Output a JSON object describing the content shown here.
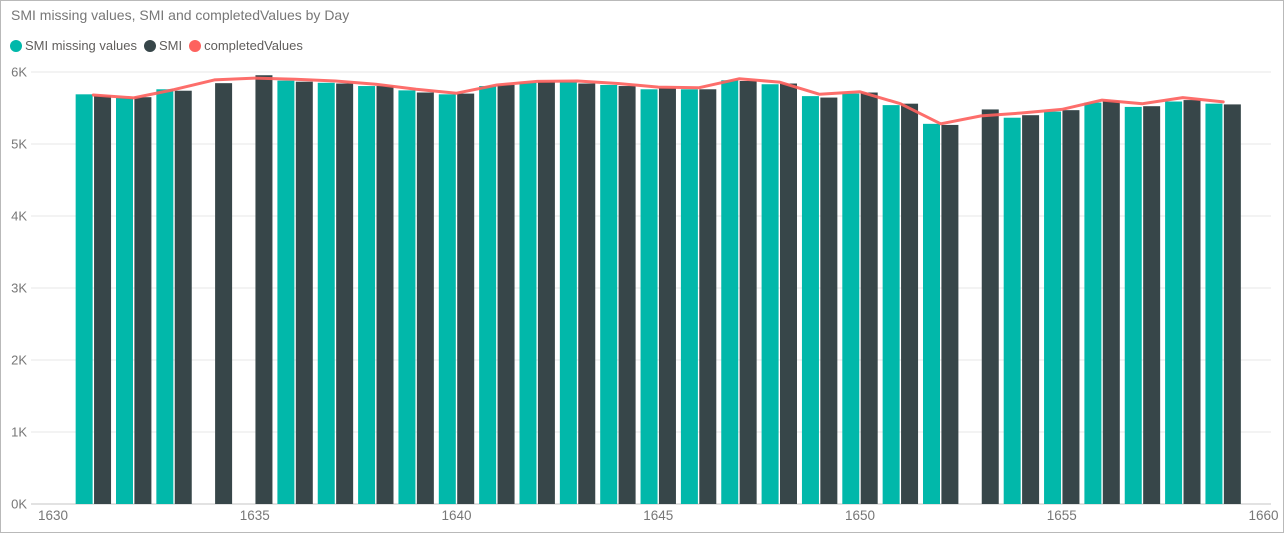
{
  "title": "SMI missing values, SMI and completedValues by Day",
  "legend": {
    "items": [
      {
        "label": "SMI missing values",
        "color": "#01B8AA"
      },
      {
        "label": "SMI",
        "color": "#374649"
      },
      {
        "label": "completedValues",
        "color": "#FD625E"
      }
    ]
  },
  "colors": {
    "teal": "#01B8AA",
    "dark": "#374649",
    "red": "#FD625E",
    "axis_text": "#777777",
    "gridline": "#ececec",
    "axis_line": "#d0d0d0",
    "title_text": "#777777"
  },
  "chart_data": {
    "type": "combo",
    "title": "SMI missing values, SMI and completedValues by Day",
    "xlabel": "Day",
    "ylabel": "",
    "categories": [
      1631,
      1632,
      1633,
      1634,
      1635,
      1636,
      1637,
      1638,
      1639,
      1640,
      1641,
      1642,
      1643,
      1644,
      1645,
      1646,
      1647,
      1648,
      1649,
      1650,
      1651,
      1652,
      1653,
      1654,
      1655,
      1656,
      1657,
      1658,
      1659
    ],
    "series": [
      {
        "name": "SMI missing values",
        "type": "bar",
        "color": "#01B8AA",
        "values": [
          5690,
          5640,
          5760,
          null,
          null,
          5880,
          5850,
          5805,
          5745,
          5690,
          5805,
          5850,
          5865,
          5820,
          5760,
          5760,
          5885,
          5830,
          5665,
          5700,
          5540,
          5280,
          null,
          5365,
          5450,
          5575,
          5515,
          5590,
          5560
        ]
      },
      {
        "name": "SMI",
        "type": "bar",
        "color": "#374649",
        "values": [
          5670,
          5650,
          5740,
          5845,
          5955,
          5865,
          5840,
          5805,
          5715,
          5700,
          5820,
          5865,
          5840,
          5805,
          5775,
          5760,
          5875,
          5840,
          5645,
          5715,
          5560,
          5265,
          5480,
          5400,
          5470,
          5600,
          5525,
          5610,
          5550
        ]
      },
      {
        "name": "completedValues",
        "type": "line",
        "color": "#FD625E",
        "values": [
          5680,
          5640,
          5755,
          5890,
          5915,
          5900,
          5875,
          5830,
          5760,
          5705,
          5820,
          5870,
          5875,
          5840,
          5790,
          5780,
          5905,
          5860,
          5690,
          5725,
          5560,
          5280,
          5390,
          5430,
          5480,
          5610,
          5560,
          5645,
          5585
        ]
      }
    ],
    "x_ticks": [
      1630,
      1635,
      1640,
      1645,
      1650,
      1655,
      1660
    ],
    "y_ticks": [
      "0K",
      "1K",
      "2K",
      "3K",
      "4K",
      "5K",
      "6K"
    ],
    "ylim": [
      0,
      6000
    ],
    "grid": "horizontal",
    "legend_position": "top-left"
  }
}
